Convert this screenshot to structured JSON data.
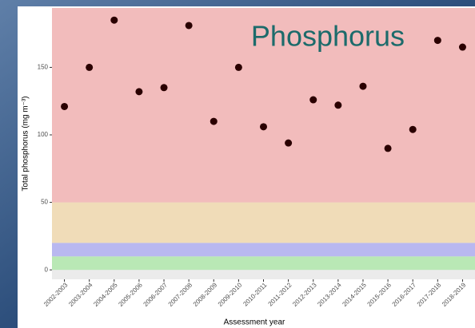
{
  "chart_data": {
    "type": "scatter",
    "title": "Phosphorus",
    "x_label": "Assessment year",
    "y_label": "Total phosphorus (mg m⁻³)",
    "categories": [
      "2002-2003",
      "2003-2004",
      "2004-2005",
      "2005-2006",
      "2006-2007",
      "2007-2008",
      "2008-2009",
      "2009-2010",
      "2010-2011",
      "2011-2012",
      "2012-2013",
      "2013-2014",
      "2014-2015",
      "2015-2016",
      "2016-2017",
      "2017-2018",
      "2018-2019"
    ],
    "values": [
      121,
      150,
      185,
      132,
      135,
      181,
      110,
      150,
      106,
      94,
      126,
      122,
      136,
      90,
      104,
      170,
      165
    ],
    "color": "#2a0000",
    "ylim": [
      -7,
      194
    ],
    "yticks": [
      0,
      50,
      100,
      150
    ],
    "bands": [
      {
        "from": 0,
        "to": 10,
        "color": "#b9e8b5"
      },
      {
        "from": 10,
        "to": 20,
        "color": "#b9b8f0"
      },
      {
        "from": 20,
        "to": 50,
        "color": "#f0dcb8"
      },
      {
        "from": 50,
        "to": 194,
        "color": "#f2bcbc"
      }
    ]
  }
}
